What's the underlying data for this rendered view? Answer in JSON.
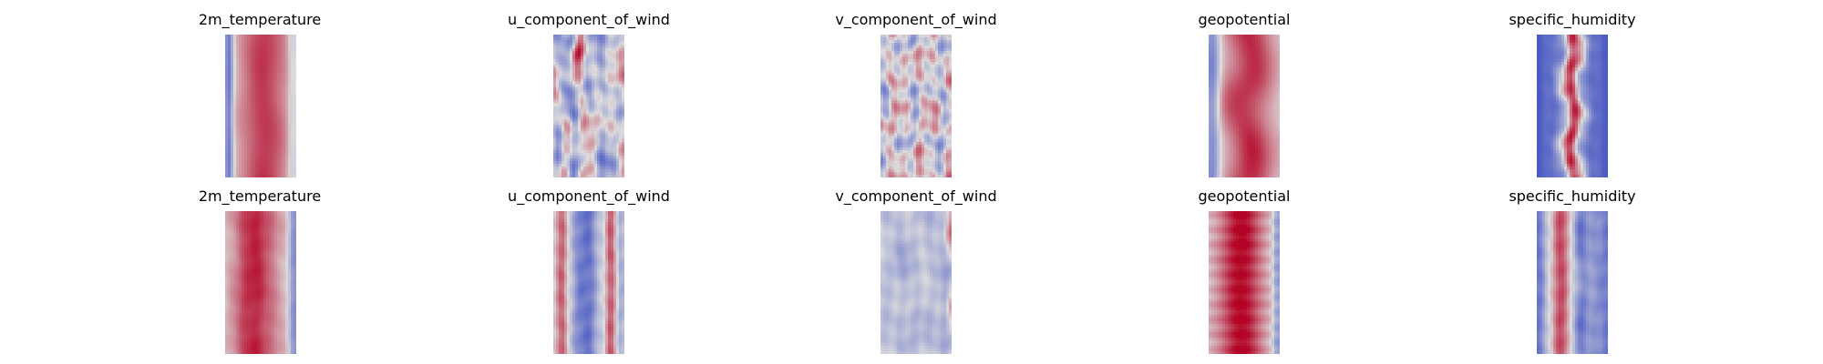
{
  "chart_data": {
    "type": "heatmap",
    "grid": {
      "rows": 2,
      "cols": 5
    },
    "colormap": {
      "name": "coolwarm",
      "low": "#3b4cc0",
      "mid": "#dddddd",
      "high": "#b40426"
    },
    "panels": [
      {
        "title": "2m_temperature",
        "row": 0,
        "col": 0,
        "pattern": "warm_band_left_cold_edge"
      },
      {
        "title": "u_component_of_wind",
        "row": 0,
        "col": 1,
        "pattern": "mixed_streaks"
      },
      {
        "title": "v_component_of_wind",
        "row": 0,
        "col": 2,
        "pattern": "noisy_eddies"
      },
      {
        "title": "geopotential",
        "row": 0,
        "col": 3,
        "pattern": "warm_core_wavy_edges"
      },
      {
        "title": "specific_humidity",
        "row": 0,
        "col": 4,
        "pattern": "narrow_moist_core"
      },
      {
        "title": "2m_temperature",
        "row": 1,
        "col": 0,
        "pattern": "warm_band_right_cold_edge"
      },
      {
        "title": "u_component_of_wind",
        "row": 1,
        "col": 1,
        "pattern": "cold_core_warm_edges"
      },
      {
        "title": "v_component_of_wind",
        "row": 1,
        "col": 2,
        "pattern": "pale_cool_field"
      },
      {
        "title": "geopotential",
        "row": 1,
        "col": 3,
        "pattern": "hot_core_banded"
      },
      {
        "title": "specific_humidity",
        "row": 1,
        "col": 4,
        "pattern": "moist_core_cool_sides"
      }
    ]
  }
}
